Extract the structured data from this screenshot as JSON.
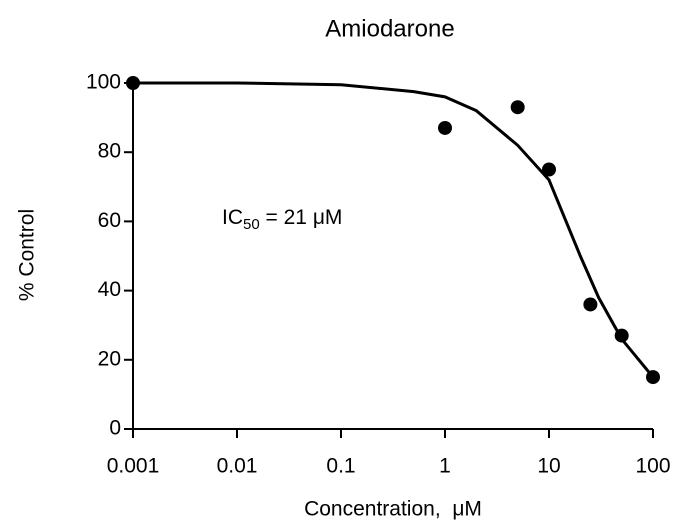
{
  "chart_data": {
    "type": "scatter",
    "title": "Amiodarone",
    "x_label": "Concentration,  μM",
    "y_label": "% Control",
    "xscale": "log",
    "xlim": [
      0.001,
      100
    ],
    "ylim": [
      0,
      100
    ],
    "xticks": [
      0.001,
      0.01,
      0.1,
      1,
      10,
      100
    ],
    "yticks": [
      0,
      20,
      40,
      60,
      80,
      100
    ],
    "annotation": {
      "text": "IC",
      "subscript": "50",
      "suffix": " = 21 μM"
    },
    "series": [
      {
        "style": "points",
        "color": "#000000",
        "x": [
          0.001,
          1,
          5,
          10,
          25,
          50,
          100
        ],
        "values": [
          100,
          87,
          93,
          75,
          36,
          27,
          15
        ]
      },
      {
        "style": "line",
        "color": "#000000",
        "x": [
          0.001,
          0.01,
          0.1,
          0.5,
          1,
          2,
          5,
          10,
          20,
          30,
          50,
          100
        ],
        "values": [
          100,
          100,
          99.5,
          97.5,
          96,
          92,
          82,
          72,
          50,
          38,
          26,
          15
        ]
      }
    ]
  }
}
